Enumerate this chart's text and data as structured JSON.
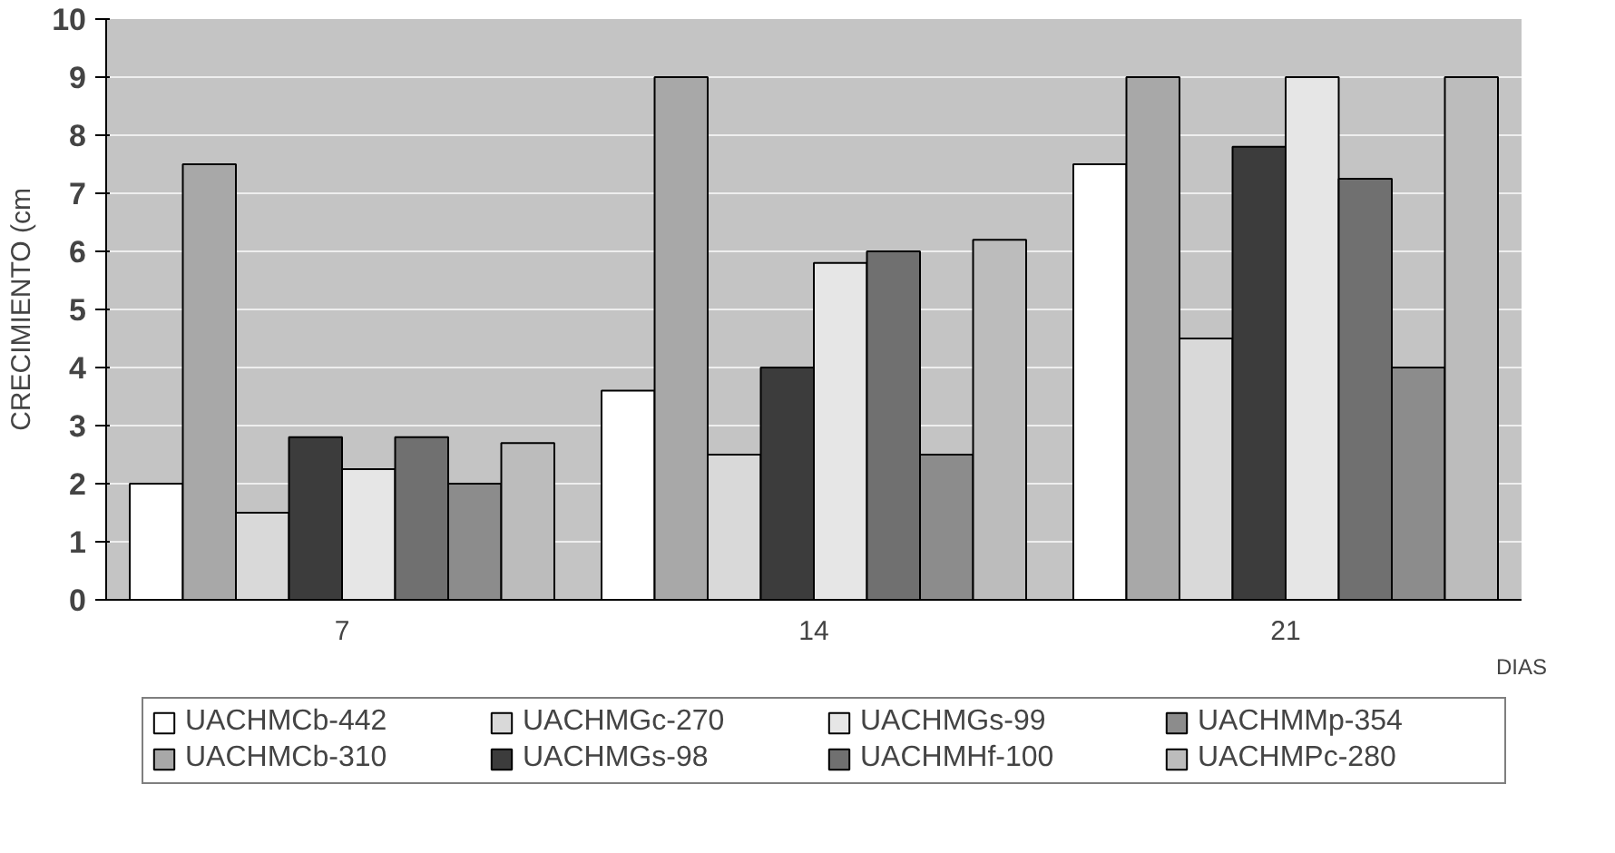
{
  "chart_data": {
    "type": "bar",
    "categories": [
      "7",
      "14",
      "21"
    ],
    "xlabel": "DIAS",
    "ylabel": "CRECIMIENTO (cm",
    "ylim": [
      0,
      10
    ],
    "yticks": [
      0,
      1,
      2,
      3,
      4,
      5,
      6,
      7,
      8,
      9,
      10
    ],
    "grid": "y",
    "legend": "bottom",
    "series": [
      {
        "name": "UACHMCb-442",
        "color": "#ffffff",
        "values": [
          2.0,
          3.6,
          7.5
        ]
      },
      {
        "name": "UACHMCb-310",
        "color": "#a8a8a8",
        "values": [
          7.5,
          9.0,
          9.0
        ]
      },
      {
        "name": "UACHMGc-270",
        "color": "#d9d9d9",
        "values": [
          1.5,
          2.5,
          4.5
        ]
      },
      {
        "name": "UACHMGs-98",
        "color": "#3c3c3c",
        "values": [
          2.8,
          4.0,
          7.8
        ]
      },
      {
        "name": "UACHMGs-99",
        "color": "#e6e6e6",
        "values": [
          2.25,
          5.8,
          9.0
        ]
      },
      {
        "name": "UACHMHf-100",
        "color": "#707070",
        "values": [
          2.8,
          6.0,
          7.25
        ]
      },
      {
        "name": "UACHMMp-354",
        "color": "#8c8c8c",
        "values": [
          2.0,
          2.5,
          4.0
        ]
      },
      {
        "name": "UACHMPc-280",
        "color": "#bcbcbc",
        "values": [
          2.7,
          6.2,
          9.0
        ]
      }
    ]
  }
}
